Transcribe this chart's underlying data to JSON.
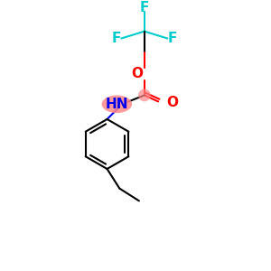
{
  "background_color": "#ffffff",
  "bond_color": "#000000",
  "F_color": "#00cccc",
  "O_color": "#ff0000",
  "N_color": "#0000ee",
  "NH_bg_color": "#ff8888",
  "bond_width": 1.5,
  "font_size_atoms": 11,
  "figsize": [
    3.0,
    3.0
  ],
  "dpi": 100,
  "xlim": [
    0,
    300
  ],
  "ylim": [
    0,
    300
  ]
}
